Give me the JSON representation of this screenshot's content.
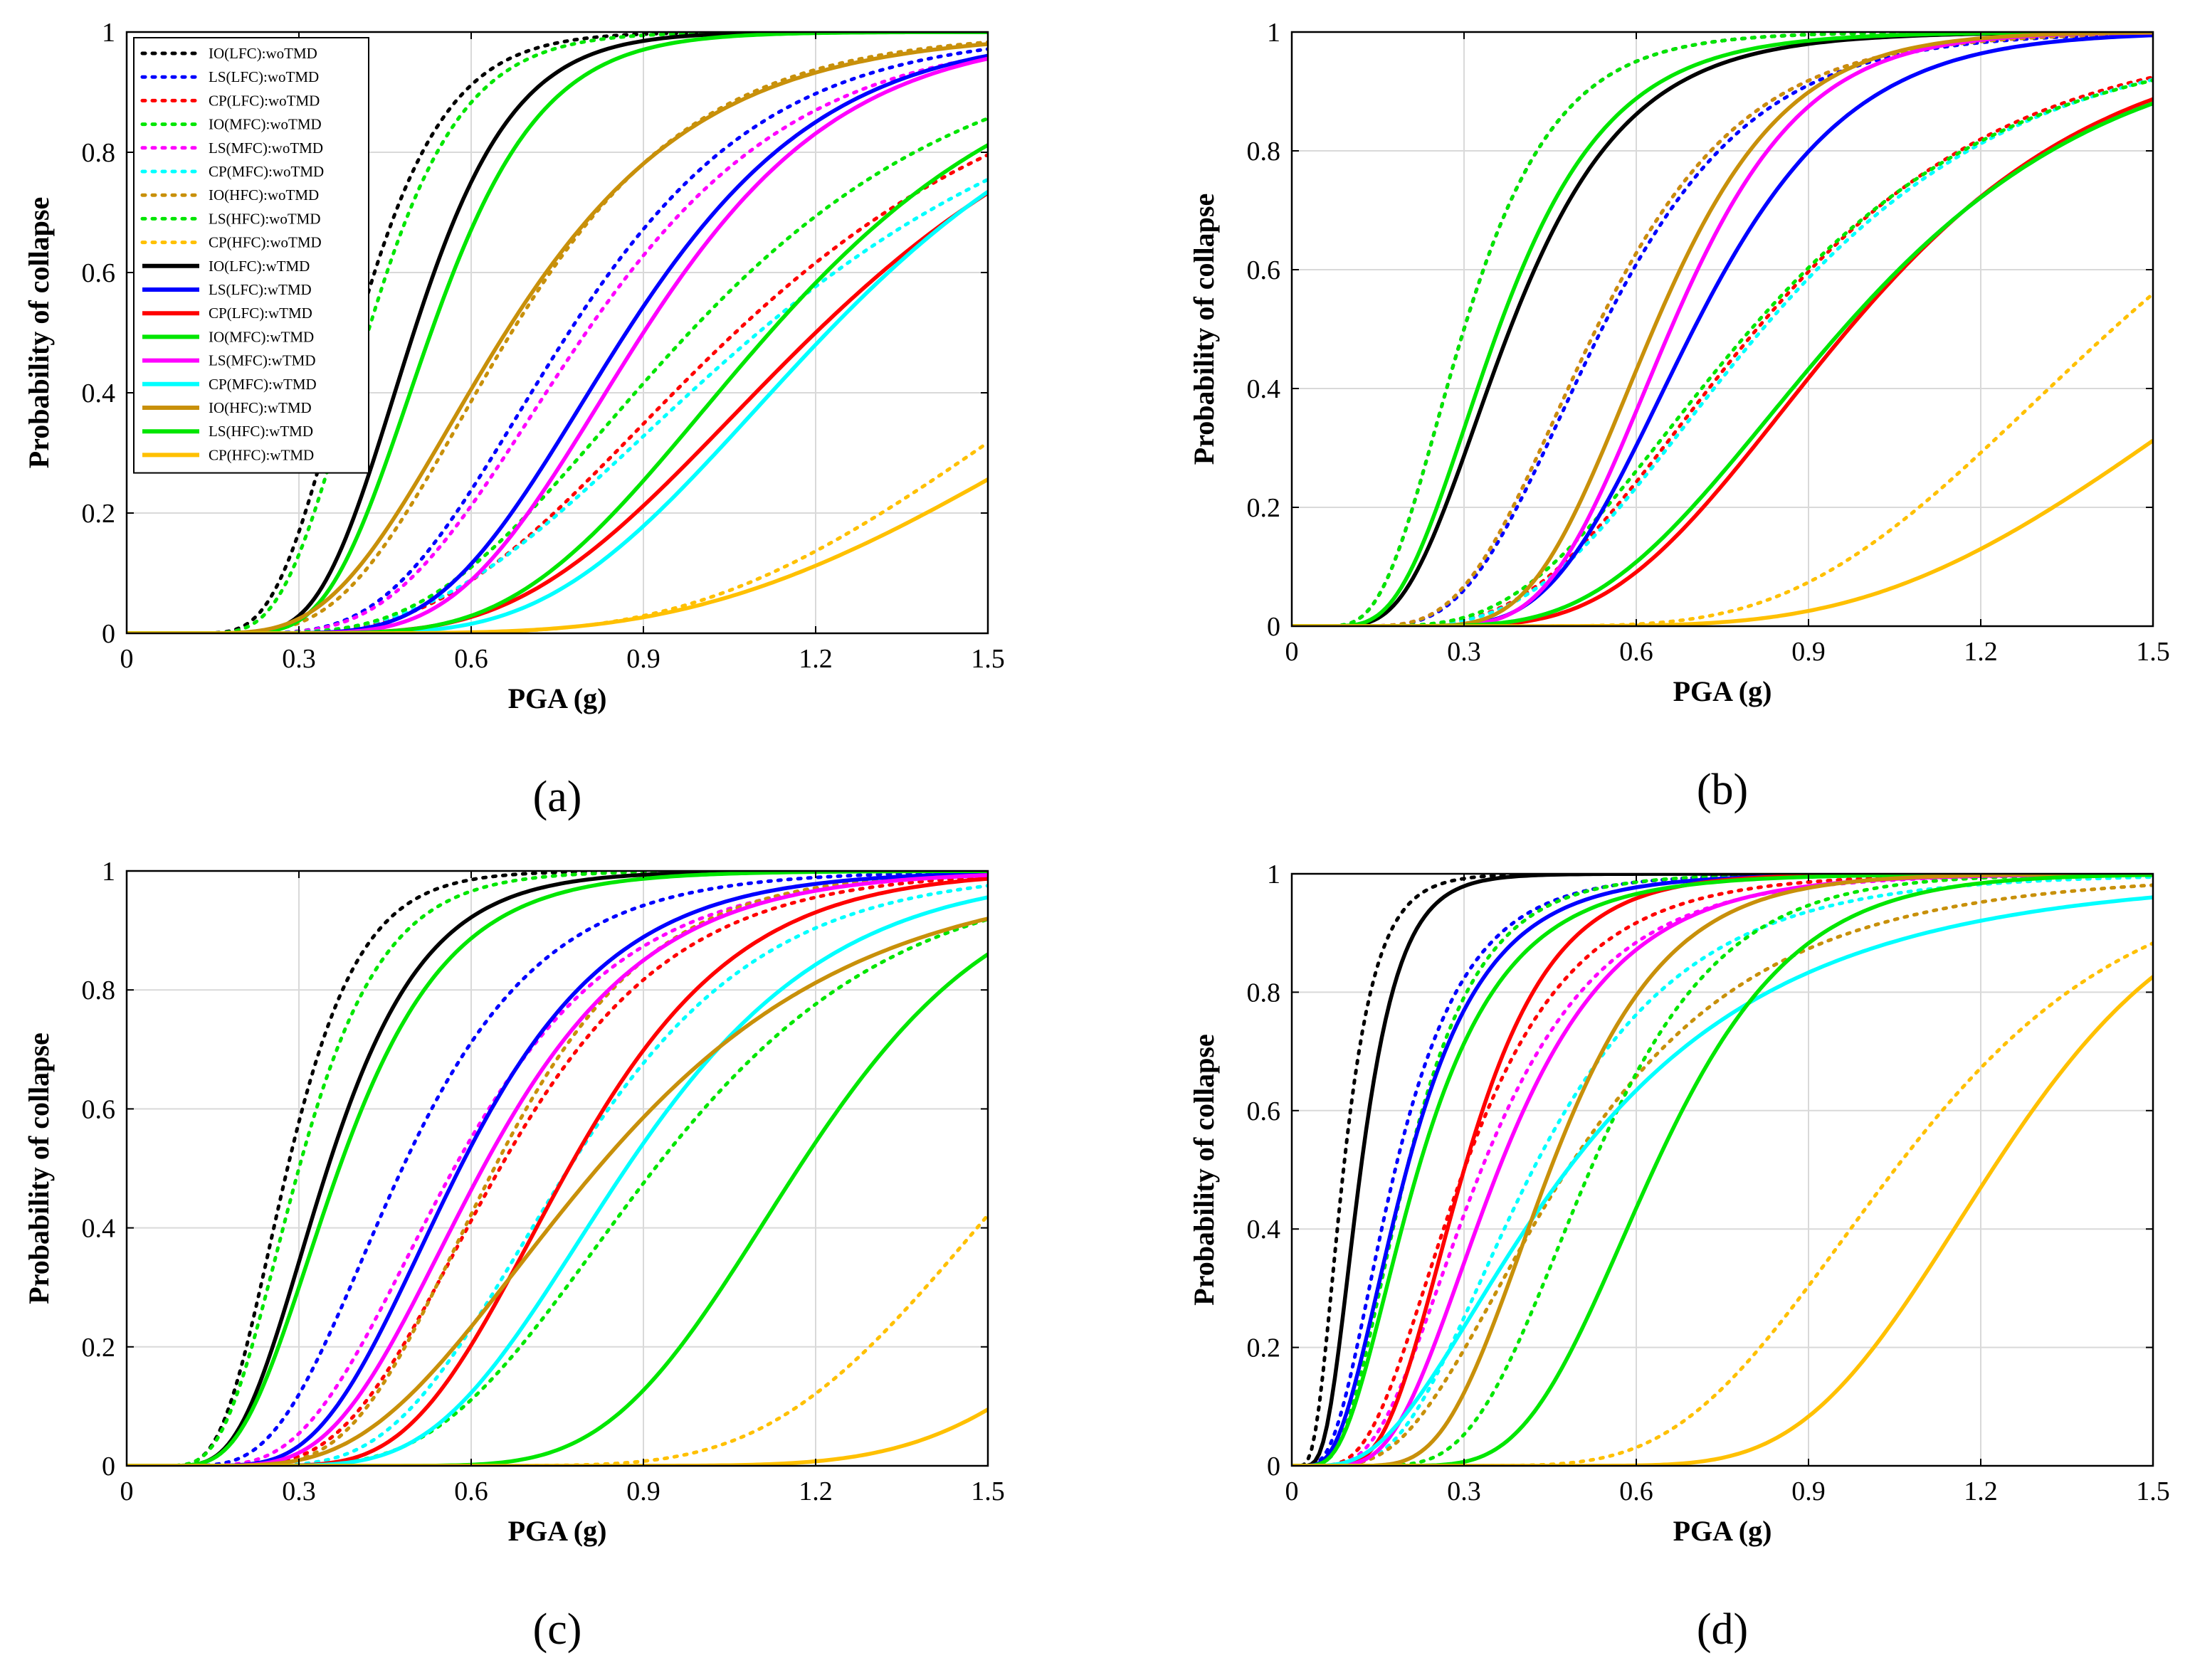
{
  "figure": {
    "xlabel": "PGA (g)",
    "ylabel": "Probability of collapse"
  },
  "legend_entries": [
    {
      "label": "IO(LFC):woTMD",
      "color": "#000000",
      "style": "dotted"
    },
    {
      "label": "LS(LFC):woTMD",
      "color": "#0000ff",
      "style": "dotted"
    },
    {
      "label": "CP(LFC):woTMD",
      "color": "#ff0000",
      "style": "dotted"
    },
    {
      "label": "IO(MFC):woTMD",
      "color": "#00e600",
      "style": "dotted"
    },
    {
      "label": "LS(MFC):woTMD",
      "color": "#ff00ff",
      "style": "dotted"
    },
    {
      "label": "CP(MFC):woTMD",
      "color": "#00ffff",
      "style": "dotted"
    },
    {
      "label": "IO(HFC):woTMD",
      "color": "#c8900a",
      "style": "dotted"
    },
    {
      "label": "LS(HFC):woTMD",
      "color": "#00e600",
      "style": "dotted"
    },
    {
      "label": "CP(HFC):woTMD",
      "color": "#ffc000",
      "style": "dotted"
    },
    {
      "label": "IO(LFC):wTMD",
      "color": "#000000",
      "style": "solid"
    },
    {
      "label": "LS(LFC):wTMD",
      "color": "#0000ff",
      "style": "solid"
    },
    {
      "label": "CP(LFC):wTMD",
      "color": "#ff0000",
      "style": "solid"
    },
    {
      "label": "IO(MFC):wTMD",
      "color": "#00e600",
      "style": "solid"
    },
    {
      "label": "LS(MFC):wTMD",
      "color": "#ff00ff",
      "style": "solid"
    },
    {
      "label": "CP(MFC):wTMD",
      "color": "#00ffff",
      "style": "solid"
    },
    {
      "label": "IO(HFC):wTMD",
      "color": "#c8900a",
      "style": "solid"
    },
    {
      "label": "LS(HFC):wTMD",
      "color": "#00e600",
      "style": "solid"
    },
    {
      "label": "CP(HFC):wTMD",
      "color": "#ffc000",
      "style": "solid"
    }
  ],
  "chart_data": [
    {
      "type": "line",
      "panel_label": "(a)",
      "xlabel": "PGA (g)",
      "ylabel": "Probability of collapse",
      "xlim": [
        0,
        1.5
      ],
      "ylim": [
        0,
        1
      ],
      "xticks": [
        "0",
        "0.3",
        "0.6",
        "0.9",
        "1.2",
        "1.5"
      ],
      "yticks": [
        "0",
        "0.2",
        "0.4",
        "0.6",
        "0.8",
        "1"
      ],
      "grid": true,
      "legend_position": "top-left",
      "model": "lognormal CDF: P = Phi(ln(PGA/median)/beta)",
      "series": [
        {
          "name": "IO(LFC):woTMD",
          "median": 0.4,
          "beta": 0.3
        },
        {
          "name": "LS(LFC):woTMD",
          "median": 0.77,
          "beta": 0.35
        },
        {
          "name": "CP(LFC):woTMD",
          "median": 1.06,
          "beta": 0.42
        },
        {
          "name": "IO(MFC):woTMD",
          "median": 0.42,
          "beta": 0.3
        },
        {
          "name": "LS(MFC):woTMD",
          "median": 0.8,
          "beta": 0.36
        },
        {
          "name": "CP(MFC):woTMD",
          "median": 1.1,
          "beta": 0.45
        },
        {
          "name": "IO(HFC):woTMD",
          "median": 0.67,
          "beta": 0.38
        },
        {
          "name": "LS(HFC):woTMD",
          "median": 0.98,
          "beta": 0.4
        },
        {
          "name": "CP(HFC):woTMD",
          "median": 1.78,
          "beta": 0.36
        },
        {
          "name": "IO(LFC):wTMD",
          "median": 0.5,
          "beta": 0.27
        },
        {
          "name": "LS(LFC):wTMD",
          "median": 0.87,
          "beta": 0.31
        },
        {
          "name": "CP(LFC):wTMD",
          "median": 1.2,
          "beta": 0.36
        },
        {
          "name": "IO(MFC):wTMD",
          "median": 0.53,
          "beta": 0.28
        },
        {
          "name": "LS(MFC):wTMD",
          "median": 0.9,
          "beta": 0.3
        },
        {
          "name": "CP(MFC):wTMD",
          "median": 1.22,
          "beta": 0.33
        },
        {
          "name": "IO(HFC):wTMD",
          "median": 0.66,
          "beta": 0.4
        },
        {
          "name": "LS(HFC):wTMD",
          "median": 1.12,
          "beta": 0.33
        },
        {
          "name": "CP(HFC):wTMD",
          "median": 1.95,
          "beta": 0.4
        }
      ]
    },
    {
      "type": "line",
      "panel_label": "(b)",
      "xlabel": "PGA (g)",
      "ylabel": "Probability of collapse",
      "xlim": [
        0,
        1.5
      ],
      "ylim": [
        0,
        1
      ],
      "xticks": [
        "0",
        "0.3",
        "0.6",
        "0.9",
        "1.2",
        "1.5"
      ],
      "yticks": [
        "0",
        "0.2",
        "0.4",
        "0.6",
        "0.8",
        "1"
      ],
      "grid": true,
      "series": [
        {
          "name": "IO(LFC):woTMD",
          "median": 0.3,
          "beta": 0.42
        },
        {
          "name": "LS(LFC):woTMD",
          "median": 0.54,
          "beta": 0.38
        },
        {
          "name": "CP(LFC):woTMD",
          "median": 0.81,
          "beta": 0.43
        },
        {
          "name": "IO(MFC):woTMD",
          "median": 0.3,
          "beta": 0.42
        },
        {
          "name": "LS(MFC):woTMD",
          "median": 0.53,
          "beta": 0.38
        },
        {
          "name": "CP(MFC):woTMD",
          "median": 0.82,
          "beta": 0.43
        },
        {
          "name": "IO(HFC):woTMD",
          "median": 0.53,
          "beta": 0.38
        },
        {
          "name": "LS(HFC):woTMD",
          "median": 0.8,
          "beta": 0.45
        },
        {
          "name": "CP(HFC):woTMD",
          "median": 1.43,
          "beta": 0.32
        },
        {
          "name": "IO(LFC):wTMD",
          "median": 0.38,
          "beta": 0.42
        },
        {
          "name": "LS(LFC):wTMD",
          "median": 0.7,
          "beta": 0.3
        },
        {
          "name": "CP(LFC):wTMD",
          "median": 0.97,
          "beta": 0.36
        },
        {
          "name": "IO(MFC):wTMD",
          "median": 0.36,
          "beta": 0.42
        },
        {
          "name": "LS(MFC):wTMD",
          "median": 0.66,
          "beta": 0.27
        },
        {
          "name": "CP(MFC):wTMD",
          "median": 0.96,
          "beta": 0.38
        },
        {
          "name": "IO(HFC):wTMD",
          "median": 0.63,
          "beta": 0.28
        },
        {
          "name": "LS(HFC):wTMD",
          "median": 0.96,
          "beta": 0.38
        },
        {
          "name": "CP(HFC):wTMD",
          "median": 1.78,
          "beta": 0.35
        }
      ]
    },
    {
      "type": "line",
      "panel_label": "(c)",
      "xlabel": "PGA (g)",
      "ylabel": "Probability of collapse",
      "xlim": [
        0,
        1.5
      ],
      "ylim": [
        0,
        1
      ],
      "xticks": [
        "0",
        "0.3",
        "0.6",
        "0.9",
        "1.2",
        "1.5"
      ],
      "yticks": [
        "0",
        "0.2",
        "0.4",
        "0.6",
        "0.8",
        "1"
      ],
      "grid": true,
      "series": [
        {
          "name": "IO(LFC):woTMD",
          "median": 0.28,
          "beta": 0.35
        },
        {
          "name": "LS(LFC):woTMD",
          "median": 0.48,
          "beta": 0.4
        },
        {
          "name": "CP(LFC):woTMD",
          "median": 0.65,
          "beta": 0.36
        },
        {
          "name": "IO(MFC):woTMD",
          "median": 0.3,
          "beta": 0.38
        },
        {
          "name": "LS(MFC):woTMD",
          "median": 0.57,
          "beta": 0.4
        },
        {
          "name": "CP(MFC):woTMD",
          "median": 0.77,
          "beta": 0.34
        },
        {
          "name": "IO(HFC):woTMD",
          "median": 0.64,
          "beta": 0.33
        },
        {
          "name": "LS(HFC):woTMD",
          "median": 0.92,
          "beta": 0.35
        },
        {
          "name": "CP(HFC):woTMD",
          "median": 1.57,
          "beta": 0.23
        },
        {
          "name": "IO(LFC):wTMD",
          "median": 0.35,
          "beta": 0.38
        },
        {
          "name": "LS(LFC):wTMD",
          "median": 0.58,
          "beta": 0.36
        },
        {
          "name": "CP(LFC):wTMD",
          "median": 0.77,
          "beta": 0.3
        },
        {
          "name": "IO(MFC):wTMD",
          "median": 0.37,
          "beta": 0.4
        },
        {
          "name": "LS(MFC):wTMD",
          "median": 0.62,
          "beta": 0.36
        },
        {
          "name": "CP(MFC):wTMD",
          "median": 0.87,
          "beta": 0.32
        },
        {
          "name": "IO(HFC):wTMD",
          "median": 0.82,
          "beta": 0.43
        },
        {
          "name": "LS(HFC):wTMD",
          "median": 1.17,
          "beta": 0.23
        },
        {
          "name": "CP(HFC):wTMD",
          "median": 1.95,
          "beta": 0.2
        }
      ]
    },
    {
      "type": "line",
      "panel_label": "(d)",
      "xlabel": "PGA (g)",
      "ylabel": "Probability of collapse",
      "xlim": [
        0,
        1.5
      ],
      "ylim": [
        0,
        1
      ],
      "xticks": [
        "0",
        "0.3",
        "0.6",
        "0.9",
        "1.2",
        "1.5"
      ],
      "yticks": [
        "0",
        "0.2",
        "0.4",
        "0.6",
        "0.8",
        "1"
      ],
      "grid": true,
      "series": [
        {
          "name": "IO(LFC):woTMD",
          "median": 0.09,
          "beta": 0.5
        },
        {
          "name": "LS(LFC):woTMD",
          "median": 0.18,
          "beta": 0.55
        },
        {
          "name": "CP(LFC):woTMD",
          "median": 0.3,
          "beta": 0.5
        },
        {
          "name": "IO(MFC):woTMD",
          "median": 0.2,
          "beta": 0.5
        },
        {
          "name": "LS(MFC):woTMD",
          "median": 0.33,
          "beta": 0.5
        },
        {
          "name": "CP(MFC):woTMD",
          "median": 0.42,
          "beta": 0.5
        },
        {
          "name": "IO(HFC):woTMD",
          "median": 0.48,
          "beta": 0.55
        },
        {
          "name": "LS(HFC):woTMD",
          "median": 0.52,
          "beta": 0.34
        },
        {
          "name": "CP(HFC):woTMD",
          "median": 1.05,
          "beta": 0.3
        },
        {
          "name": "IO(LFC):wTMD",
          "median": 0.12,
          "beta": 0.45
        },
        {
          "name": "LS(LFC):wTMD",
          "median": 0.2,
          "beta": 0.55
        },
        {
          "name": "CP(LFC):wTMD",
          "median": 0.3,
          "beta": 0.4
        },
        {
          "name": "IO(MFC):wTMD",
          "median": 0.22,
          "beta": 0.55
        },
        {
          "name": "LS(MFC):wTMD",
          "median": 0.36,
          "beta": 0.45
        },
        {
          "name": "CP(MFC):wTMD",
          "median": 0.48,
          "beta": 0.65
        },
        {
          "name": "IO(HFC):wTMD",
          "median": 0.45,
          "beta": 0.35
        },
        {
          "name": "LS(HFC):wTMD",
          "median": 0.63,
          "beta": 0.3
        },
        {
          "name": "CP(HFC):wTMD",
          "median": 1.22,
          "beta": 0.22
        }
      ]
    }
  ]
}
